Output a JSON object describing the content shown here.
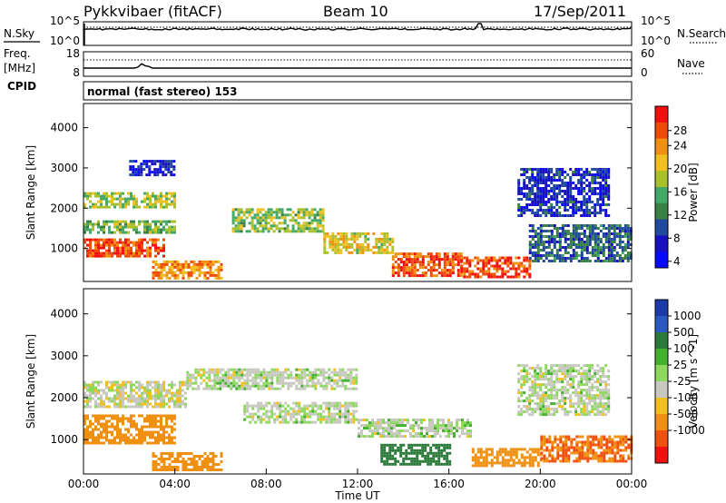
{
  "header": {
    "station": "Pykkvibaer (fitACF)",
    "beam": "Beam 10",
    "date": "17/Sep/2011"
  },
  "left_labels": {
    "nsky": "N.Sky",
    "freq": "Freq.",
    "freq_unit": "[MHz]",
    "cpid": "CPID"
  },
  "right_labels": {
    "nsearch": "N.Search",
    "nave": "Nave"
  },
  "cpid_text": "normal (fast stereo) 153",
  "chart_data": [
    {
      "type": "line",
      "panel": "noise",
      "left_ticks": [
        "10^5",
        "10^0"
      ],
      "right_ticks": [
        "10^5",
        "10^0"
      ],
      "series": [
        {
          "name": "N.Sky",
          "style": "solid"
        },
        {
          "name": "N.Search",
          "style": "dotted"
        }
      ]
    },
    {
      "type": "line",
      "panel": "frequency",
      "left_ticks": [
        "18",
        "8"
      ],
      "right_ticks": [
        "60",
        "0"
      ],
      "series": [
        {
          "name": "Freq.",
          "style": "solid"
        },
        {
          "name": "Nave",
          "style": "dotted"
        }
      ]
    },
    {
      "type": "heatmap",
      "panel": "power",
      "ylabel": "Slant Range [km]",
      "yticks": [
        "4000",
        "3000",
        "2000",
        "1000"
      ],
      "ylim": [
        180,
        4600
      ],
      "xlim": [
        0,
        24
      ],
      "colorbar": {
        "label": "Power [dB]",
        "ticks": [
          "28",
          "24",
          "20",
          "16",
          "12",
          "8",
          "4"
        ],
        "colors": [
          "#f01010",
          "#f04a0a",
          "#f09010",
          "#f0c020",
          "#a8c02c",
          "#44a866",
          "#388044",
          "#204a9c",
          "#1810c0",
          "#0808ff"
        ]
      },
      "echo_regions": [
        {
          "t0": 0.0,
          "t1": 4.0,
          "r0": 2000,
          "r1": 2400,
          "dB": 18
        },
        {
          "t0": 0.0,
          "t1": 3.5,
          "r0": 800,
          "r1": 1250,
          "dB": 27
        },
        {
          "t0": 0.0,
          "t1": 4.0,
          "r0": 1400,
          "r1": 1700,
          "dB": 16
        },
        {
          "t0": 2.0,
          "t1": 4.0,
          "r0": 2800,
          "r1": 3200,
          "dB": 6
        },
        {
          "t0": 3.0,
          "t1": 6.0,
          "r0": 250,
          "r1": 700,
          "dB": 24
        },
        {
          "t0": 6.5,
          "t1": 10.5,
          "r0": 1400,
          "r1": 2000,
          "dB": 17
        },
        {
          "t0": 10.5,
          "t1": 13.5,
          "r0": 900,
          "r1": 1400,
          "dB": 20
        },
        {
          "t0": 13.5,
          "t1": 16.5,
          "r0": 300,
          "r1": 900,
          "dB": 27
        },
        {
          "t0": 16.5,
          "t1": 19.5,
          "r0": 300,
          "r1": 800,
          "dB": 28
        },
        {
          "t0": 19.5,
          "t1": 24.0,
          "r0": 700,
          "r1": 1600,
          "dB": 10
        },
        {
          "t0": 19.0,
          "t1": 23.0,
          "r0": 1800,
          "r1": 3000,
          "dB": 7
        }
      ]
    },
    {
      "type": "heatmap",
      "panel": "velocity",
      "ylabel": "Slant Range [km]",
      "yticks": [
        "4000",
        "3000",
        "2000",
        "1000"
      ],
      "xticks": [
        "00:00",
        "04:00",
        "08:00",
        "12:00",
        "16:00",
        "20:00",
        "00:00"
      ],
      "xlabel": "Time UT",
      "ylim": [
        180,
        4600
      ],
      "xlim": [
        0,
        24
      ],
      "colorbar": {
        "label": "Velocity [m s^-1]",
        "ticks": [
          "1000",
          "500",
          "100",
          "25",
          "-25",
          "-100",
          "-500",
          "-1000"
        ],
        "colors": [
          "#1c3aa8",
          "#2a5ac0",
          "#2c7a3a",
          "#44b030",
          "#8ed860",
          "#c8c8c0",
          "#f0c020",
          "#f09010",
          "#f05010",
          "#f01010"
        ]
      },
      "echo_regions": [
        {
          "t0": 0.0,
          "t1": 4.0,
          "r0": 900,
          "r1": 1600,
          "v": -400
        },
        {
          "t0": 0.0,
          "t1": 4.5,
          "r0": 1800,
          "r1": 2400,
          "v": -10
        },
        {
          "t0": 4.5,
          "t1": 12.0,
          "r0": 2200,
          "r1": 2700,
          "v": 0
        },
        {
          "t0": 3.0,
          "t1": 6.0,
          "r0": 300,
          "r1": 700,
          "v": -200
        },
        {
          "t0": 7.0,
          "t1": 12.0,
          "r0": 1400,
          "r1": 1900,
          "v": 0
        },
        {
          "t0": 12.0,
          "t1": 17.0,
          "r0": 1100,
          "r1": 1500,
          "v": 0
        },
        {
          "t0": 13.0,
          "t1": 16.0,
          "r0": 400,
          "r1": 900,
          "v": 300
        },
        {
          "t0": 17.0,
          "t1": 20.0,
          "r0": 400,
          "r1": 800,
          "v": -150
        },
        {
          "t0": 20.0,
          "t1": 24.0,
          "r0": 500,
          "r1": 1100,
          "v": -500
        },
        {
          "t0": 19.0,
          "t1": 23.0,
          "r0": 1600,
          "r1": 2800,
          "v": 0
        }
      ]
    }
  ]
}
